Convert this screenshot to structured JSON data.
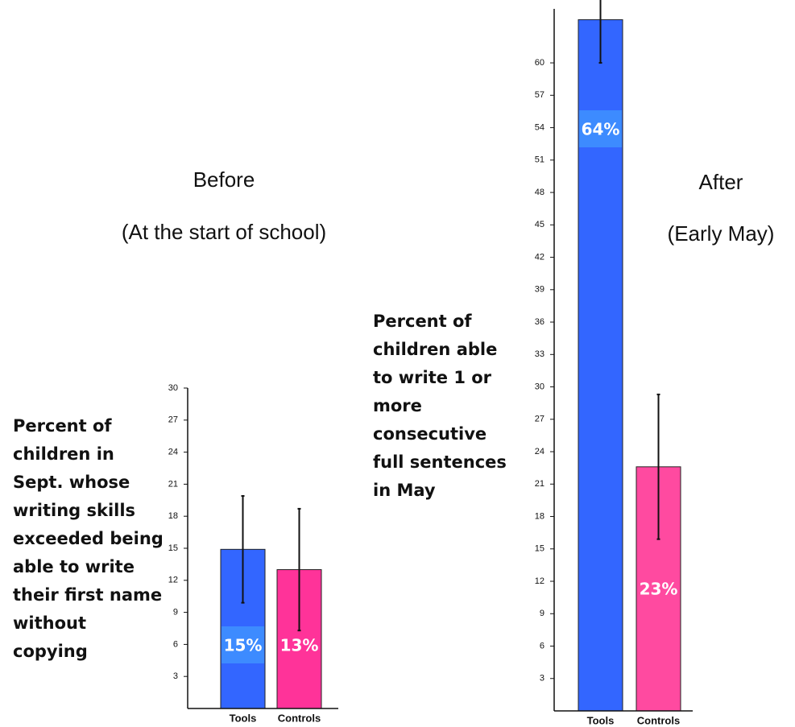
{
  "chart_data": [
    {
      "type": "bar",
      "title": "Before",
      "subtitle": "(At the start of school)",
      "y_label": "Percent of children in Sept. whose writing skills exceeded being able to write their first name without copying",
      "categories": [
        "Tools",
        "Controls"
      ],
      "values": [
        14.9,
        13
      ],
      "errors": [
        5,
        5.7
      ],
      "value_labels": [
        "15%",
        "13%"
      ],
      "colors": [
        "#3366ff",
        "#ff3399"
      ],
      "ylim": [
        0,
        30
      ],
      "yticks": [
        3,
        6,
        9,
        12,
        15,
        18,
        21,
        24,
        27,
        30
      ]
    },
    {
      "type": "bar",
      "title": "After",
      "subtitle": "(Early May)",
      "y_label": "Percent of children able to write 1 or more consecutive full sentences in May",
      "categories": [
        "Tools",
        "Controls"
      ],
      "values": [
        64,
        22.6
      ],
      "errors": [
        4,
        6.7
      ],
      "value_labels": [
        "64%",
        "23%"
      ],
      "colors": [
        "#3366ff",
        "#ff4aa0"
      ],
      "ylim": [
        0,
        65
      ],
      "yticks": [
        3,
        6,
        9,
        12,
        15,
        18,
        21,
        24,
        27,
        30,
        33,
        36,
        39,
        42,
        45,
        48,
        51,
        54,
        57,
        60
      ]
    }
  ]
}
